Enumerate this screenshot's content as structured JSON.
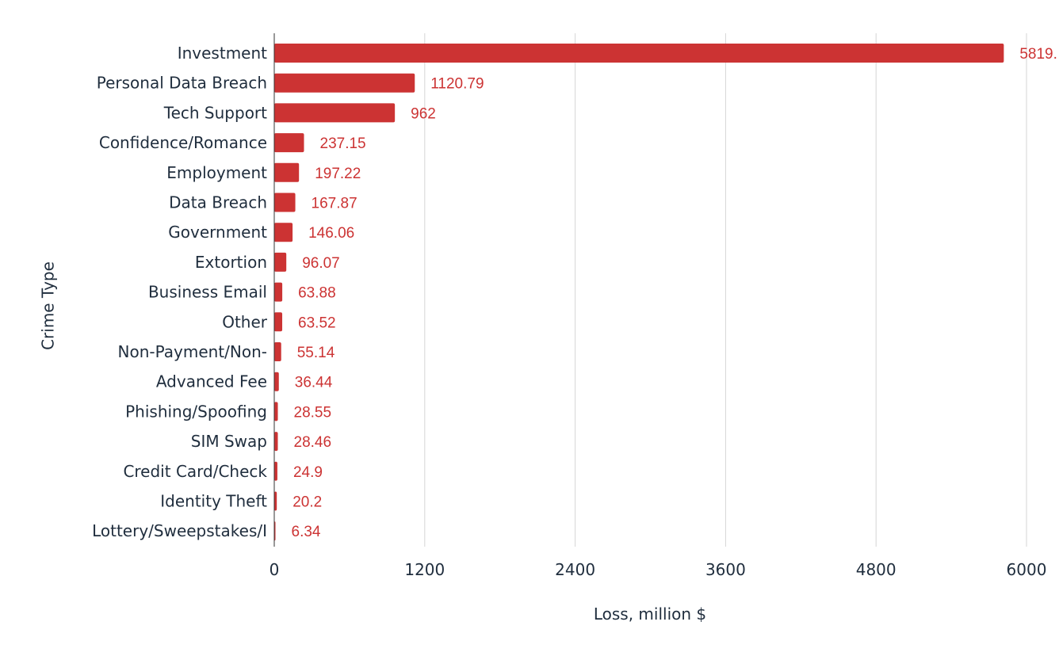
{
  "chart_data": {
    "type": "bar",
    "orientation": "horizontal",
    "title": "",
    "xlabel": "Loss, million $",
    "ylabel": "Crime Type",
    "xlim": [
      0,
      6000
    ],
    "xticks": [
      0,
      1200,
      2400,
      3600,
      4800,
      6000
    ],
    "grid": "vertical",
    "legend": "none",
    "bar_color": "#cc3333",
    "label_color": "#cc3333",
    "data_labels": [
      "5819.",
      "1120.79",
      "962",
      "237.15",
      "197.22",
      "167.87",
      "146.06",
      "96.07",
      "63.88",
      "63.52",
      "55.14",
      "36.44",
      "28.55",
      "28.46",
      "24.9",
      "20.2",
      "6.34"
    ],
    "categories": [
      "Investment",
      "Personal Data Breach",
      "Tech Support",
      "Confidence/Romance",
      "Employment",
      "Data Breach",
      "Government",
      "Extortion",
      "Business Email",
      "Other",
      "Non-Payment/Non-",
      "Advanced Fee",
      "Phishing/Spoofing",
      "SIM Swap",
      "Credit Card/Check",
      "Identity Theft",
      "Lottery/Sweepstakes/I"
    ],
    "values": [
      5819,
      1120.79,
      962,
      237.15,
      197.22,
      167.87,
      146.06,
      96.07,
      63.88,
      63.52,
      55.14,
      36.44,
      28.55,
      28.46,
      24.9,
      20.2,
      6.34
    ]
  }
}
